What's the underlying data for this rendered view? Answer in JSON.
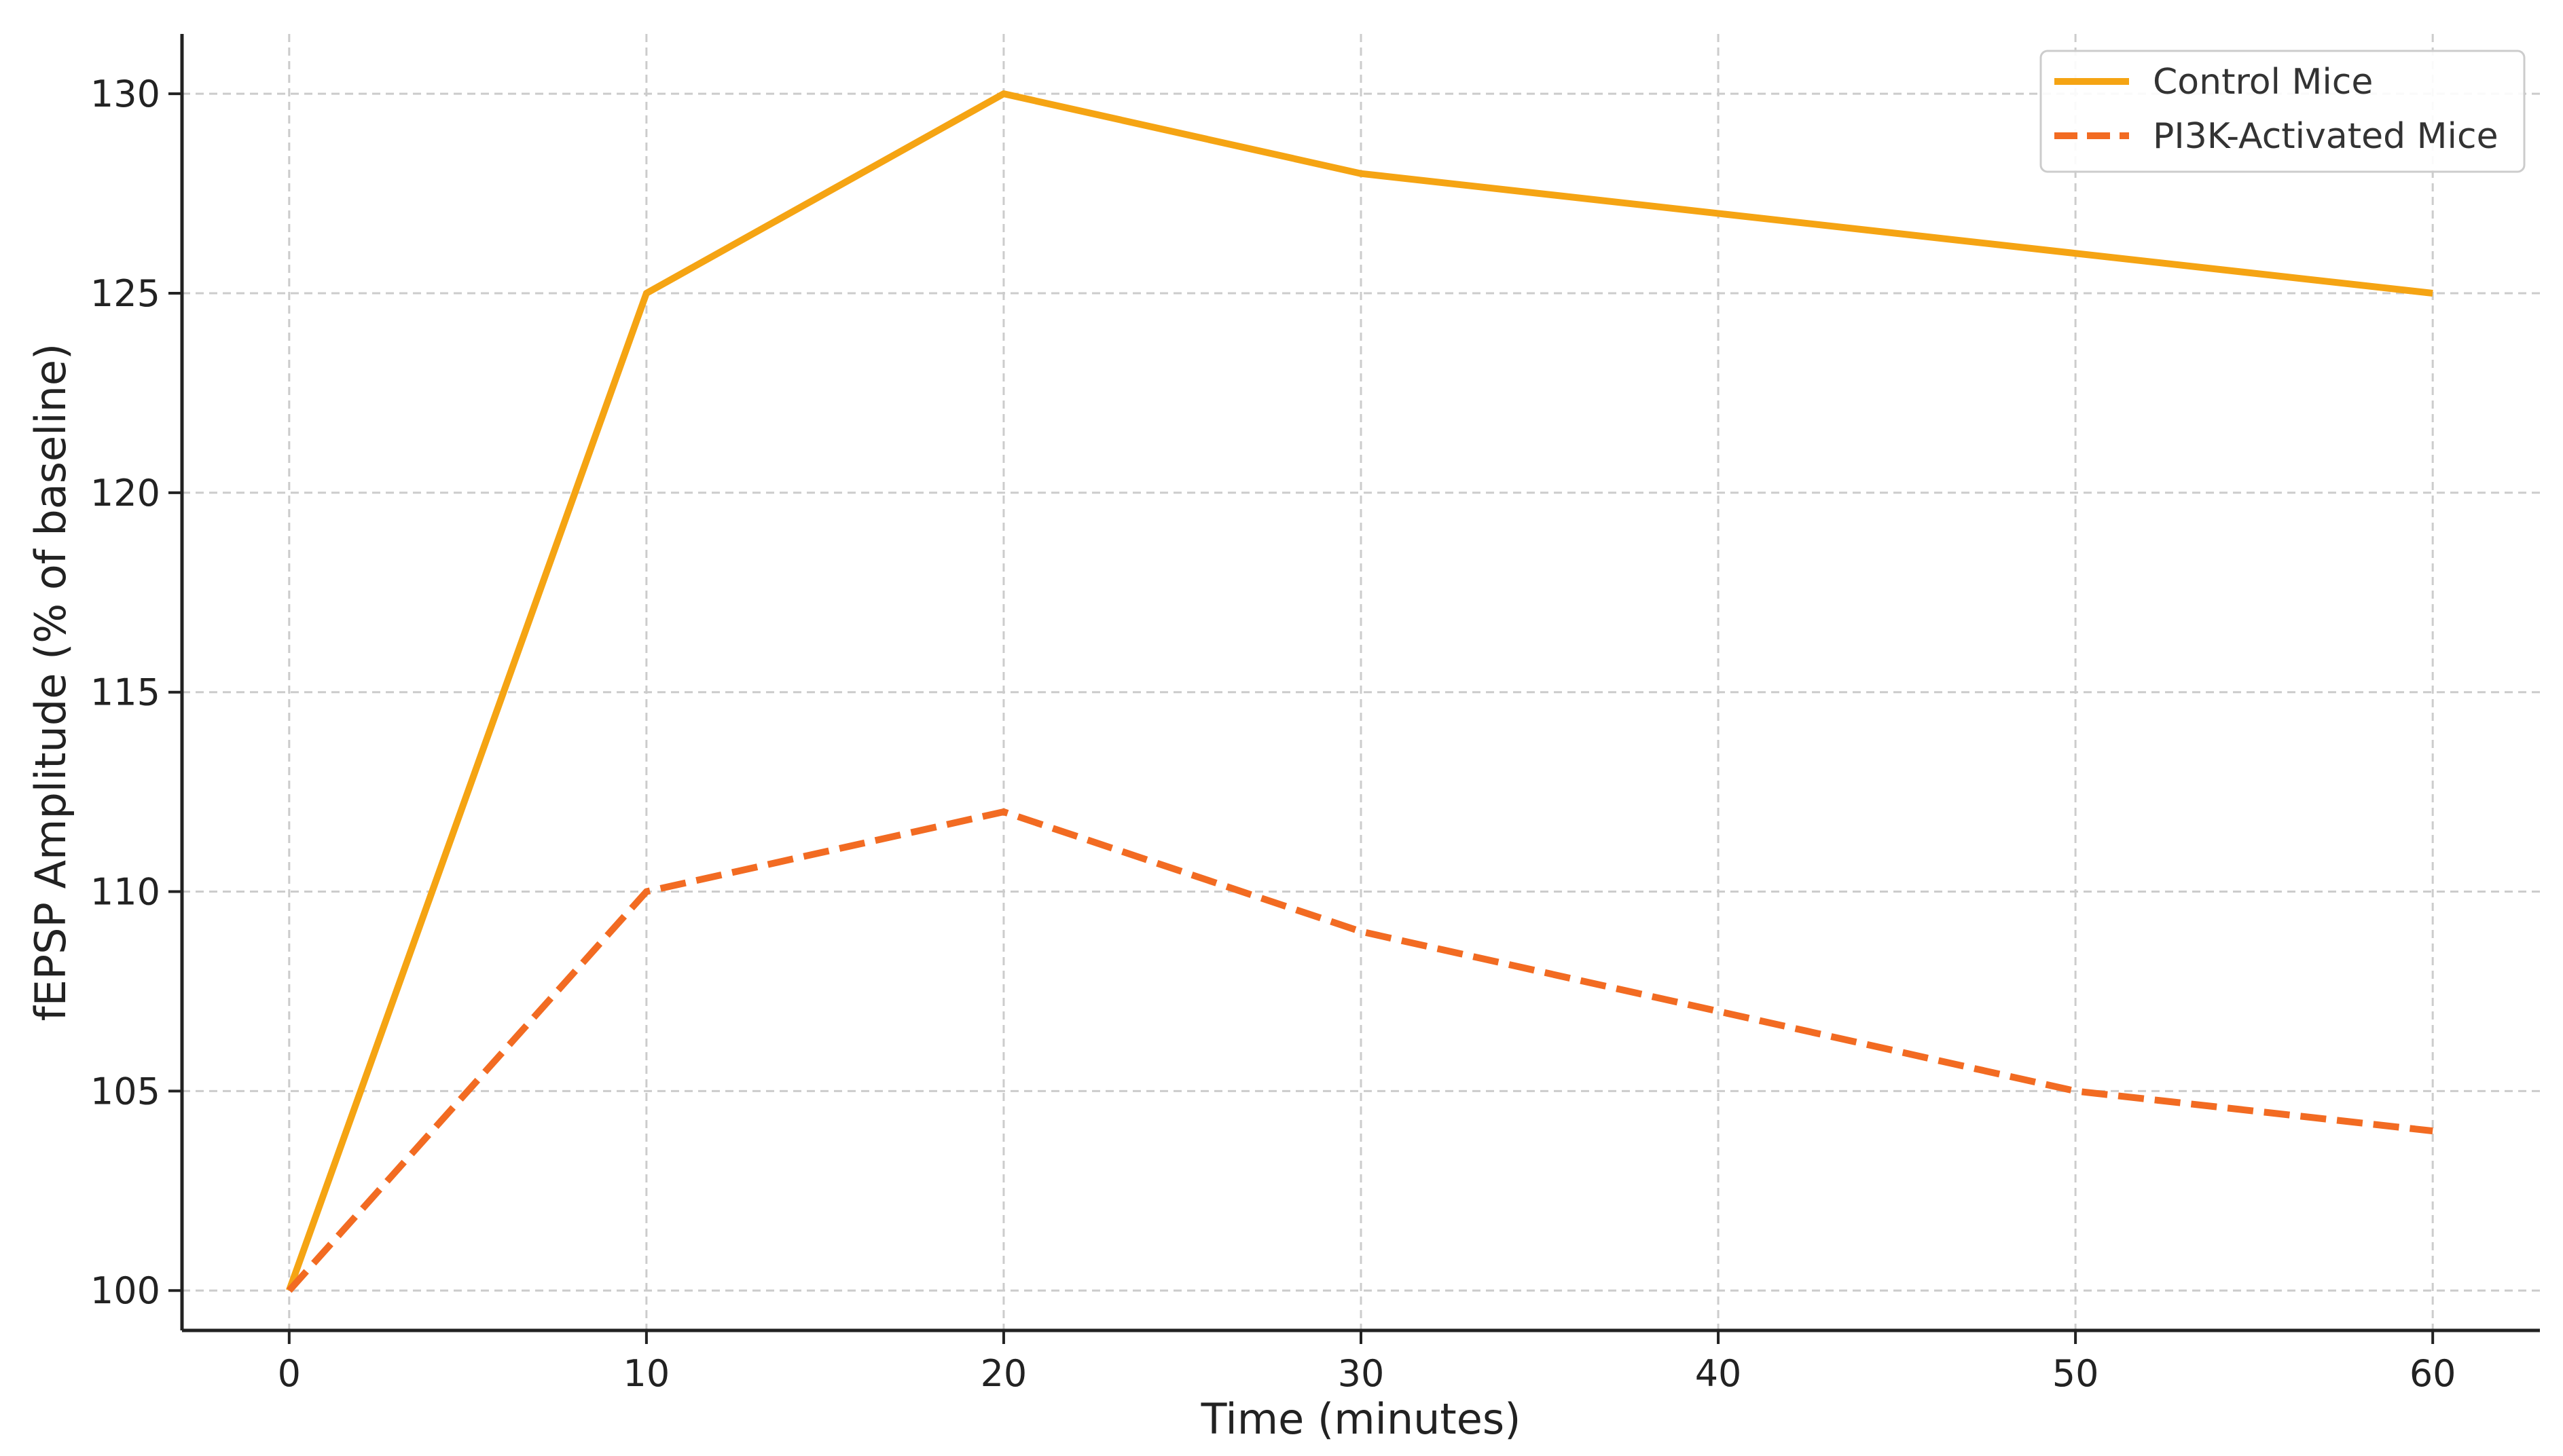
{
  "chart_data": {
    "type": "line",
    "title": "",
    "xlabel": "Time (minutes)",
    "ylabel": "fEPSP Amplitude (% of baseline)",
    "x": [
      0,
      10,
      20,
      30,
      40,
      50,
      60
    ],
    "xlim": [
      -3,
      63
    ],
    "ylim": [
      99,
      131.5
    ],
    "xticks": [
      0,
      10,
      20,
      30,
      40,
      50,
      60
    ],
    "yticks": [
      100,
      105,
      110,
      115,
      120,
      125,
      130
    ],
    "grid": true,
    "legend_position": "top-right",
    "series": [
      {
        "name": "Control Mice",
        "values": [
          100,
          125,
          130,
          128,
          127,
          126,
          125
        ],
        "color": "#f5a413",
        "line_style": "solid"
      },
      {
        "name": "PI3K-Activated Mice",
        "values": [
          100,
          110,
          112,
          109,
          107,
          105,
          104
        ],
        "color": "#f26b22",
        "line_style": "dashed"
      }
    ]
  }
}
